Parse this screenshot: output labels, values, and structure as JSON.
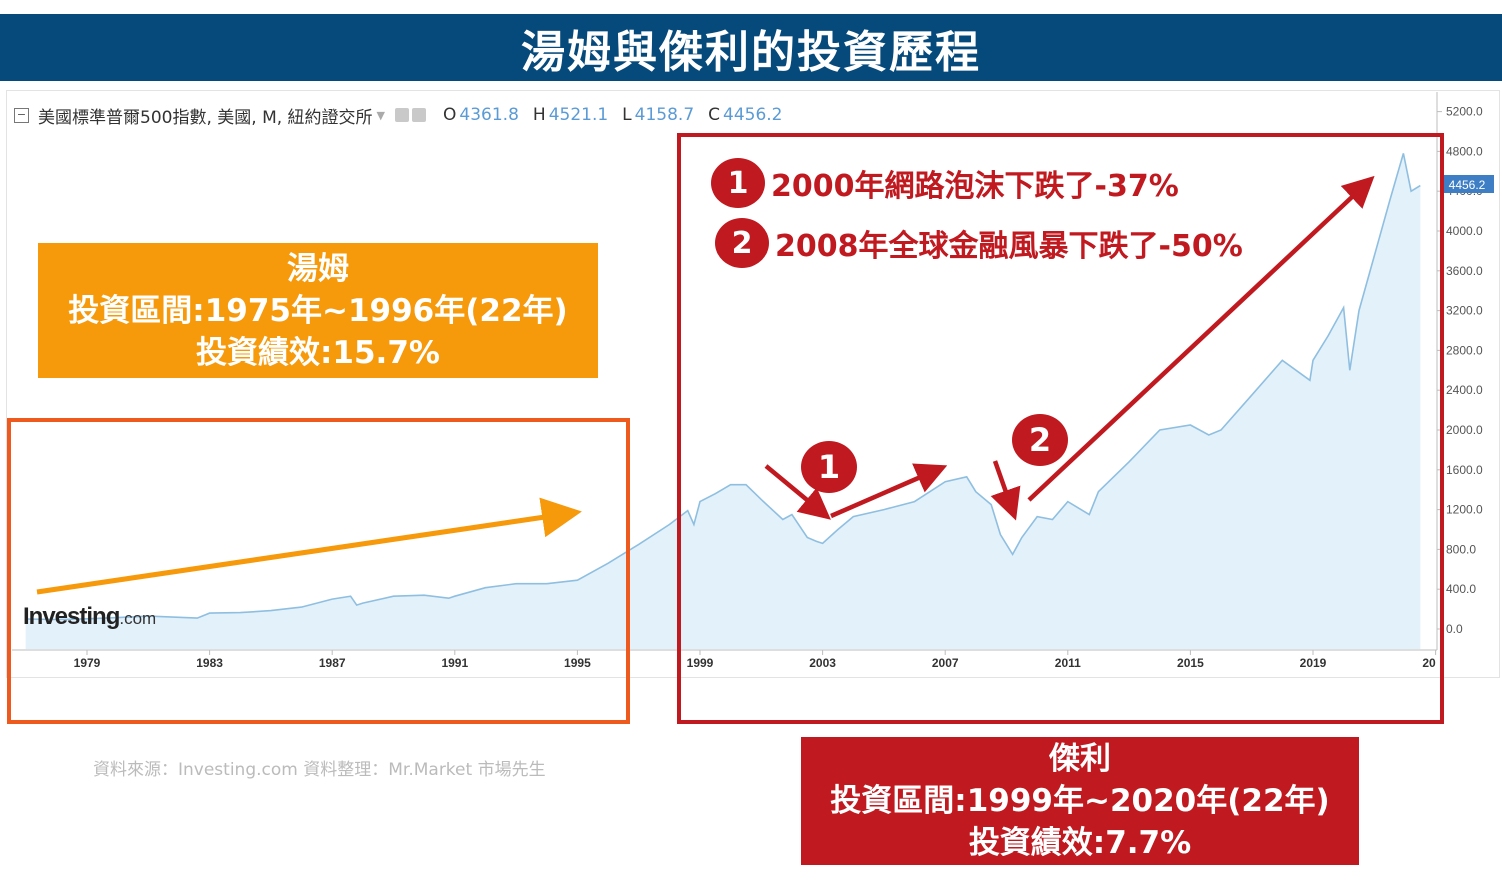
{
  "title": "湯姆與傑利的投資歷程",
  "header": {
    "instrument": "美國標準普爾500指數, 美國, M, 紐約證交所",
    "open_label": "O",
    "open": "4361.8",
    "high_label": "H",
    "high": "4521.1",
    "low_label": "L",
    "low": "4158.7",
    "close_label": "C",
    "close": "4456.2"
  },
  "logo": {
    "name": "Investing",
    "suffix": ".com"
  },
  "tom": {
    "name": "湯姆",
    "period": "投資區間:1975年~1996年(22年)",
    "performance": "投資績效:15.7%"
  },
  "jerry": {
    "name": "傑利",
    "period": "投資區間:1999年~2020年(22年)",
    "performance": "投資績效:7.7%"
  },
  "events": [
    {
      "badge": "1",
      "text": "2000年網路泡沫下跌了-37%"
    },
    {
      "badge": "2",
      "text": "2008年全球金融風暴下跌了-50%"
    }
  ],
  "source_note": "資料來源：Investing.com  資料整理：Mr.Market 市場先生",
  "colors": {
    "title_bg": "#06497b",
    "tom": "#f6990a",
    "tom_frame": "#ee5a1d",
    "jerry": "#c0191f",
    "line": "#8fbfe0",
    "fill": "#e3f1fb"
  },
  "chart_data": {
    "type": "area",
    "x_ticks": [
      "1979",
      "1983",
      "1987",
      "1991",
      "1995",
      "1999",
      "2003",
      "2007",
      "2011",
      "2015",
      "2019",
      "20"
    ],
    "y_ticks": [
      "5200.0",
      "4800.0",
      "4400.0",
      "4000.0",
      "3600.0",
      "3200.0",
      "2800.0",
      "2400.0",
      "2000.0",
      "1600.0",
      "1200.0",
      "800.0",
      "400.0",
      "0.0"
    ],
    "ylim": [
      0,
      5200
    ],
    "last_value_label": "4456.2",
    "grid": false,
    "series": [
      {
        "x": [
          1977.0,
          1978.0,
          1979.0,
          1980.0,
          1981.0,
          1982.0,
          1982.6,
          1983.0,
          1984.0,
          1985.0,
          1986.0,
          1987.0,
          1987.6,
          1987.8,
          1988.0,
          1989.0,
          1990.0,
          1990.8,
          1991.0,
          1992.0,
          1993.0,
          1994.0,
          1995.0,
          1996.0,
          1997.0,
          1998.0,
          1998.6,
          1998.8,
          1999.0,
          1999.5,
          2000.0,
          2000.5,
          2001.0,
          2001.7,
          2002.0,
          2002.5,
          2002.8,
          2003.0,
          2003.5,
          2004.0,
          2005.0,
          2006.0,
          2007.0,
          2007.7,
          2008.0,
          2008.5,
          2008.8,
          2009.2,
          2009.5,
          2010.0,
          2010.5,
          2011.0,
          2011.7,
          2012.0,
          2013.0,
          2014.0,
          2015.0,
          2015.6,
          2016.0,
          2017.0,
          2018.0,
          2018.9,
          2019.0,
          2019.5,
          2020.0,
          2020.2,
          2020.5,
          2021.0,
          2021.5,
          2021.95,
          2022.2,
          2022.5
        ],
        "y": [
          100,
          95,
          103,
          115,
          130,
          118,
          110,
          160,
          165,
          185,
          220,
          300,
          330,
          240,
          260,
          330,
          340,
          310,
          330,
          415,
          455,
          455,
          490,
          660,
          850,
          1050,
          1190,
          1050,
          1280,
          1360,
          1450,
          1450,
          1300,
          1100,
          1150,
          920,
          880,
          860,
          1000,
          1130,
          1200,
          1280,
          1480,
          1530,
          1380,
          1250,
          950,
          750,
          920,
          1130,
          1100,
          1280,
          1150,
          1380,
          1680,
          2000,
          2050,
          1950,
          2000,
          2350,
          2700,
          2500,
          2700,
          2950,
          3230,
          2600,
          3200,
          3750,
          4300,
          4780,
          4400,
          4456.2
        ]
      }
    ]
  }
}
